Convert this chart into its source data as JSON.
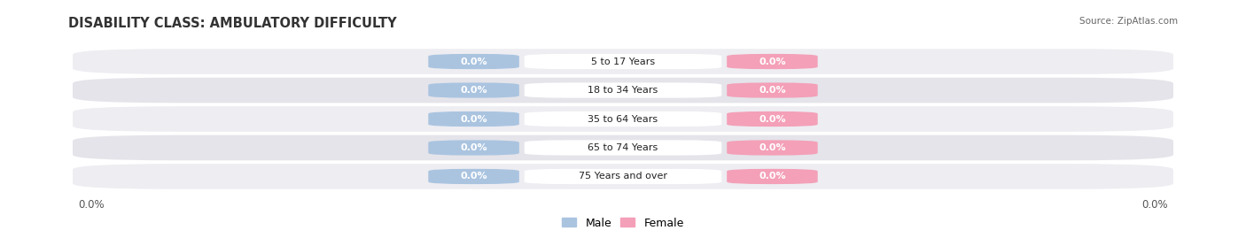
{
  "title": "DISABILITY CLASS: AMBULATORY DIFFICULTY",
  "source": "Source: ZipAtlas.com",
  "categories": [
    "5 to 17 Years",
    "18 to 34 Years",
    "35 to 64 Years",
    "65 to 74 Years",
    "75 Years and over"
  ],
  "male_values": [
    0.0,
    0.0,
    0.0,
    0.0,
    0.0
  ],
  "female_values": [
    0.0,
    0.0,
    0.0,
    0.0,
    0.0
  ],
  "male_color": "#aac4e0",
  "female_color": "#f4a0b8",
  "row_bg_colors": [
    "#ededf2",
    "#e4e4ea"
  ],
  "title_fontsize": 10.5,
  "label_fontsize": 8,
  "axis_label_fontsize": 8.5,
  "x_left_label": "0.0%",
  "x_right_label": "0.0%",
  "legend_male": "Male",
  "legend_female": "Female",
  "background_color": "#ffffff"
}
